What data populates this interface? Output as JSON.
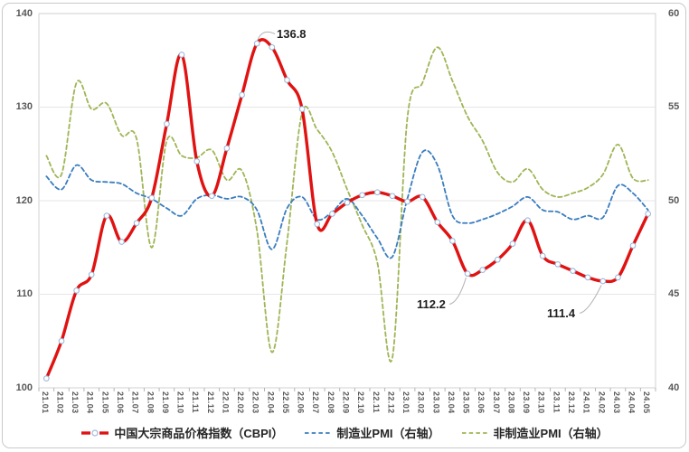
{
  "chart_data": {
    "type": "line",
    "title": "",
    "legend_position": "bottom",
    "grid": true,
    "x_labels": [
      "21.01",
      "21.02",
      "21.03",
      "21.04",
      "21.05",
      "21.06",
      "21.07",
      "21.08",
      "21.09",
      "21.10",
      "21.11",
      "21.12",
      "22.01",
      "22.02",
      "22.03",
      "22.04",
      "22.05",
      "22.06",
      "22.07",
      "22.08",
      "22.09",
      "22.10",
      "22.11",
      "22.12",
      "23.01",
      "23.02",
      "23.03",
      "23.04",
      "23.05",
      "23.06",
      "23.07",
      "23.08",
      "23.09",
      "23.10",
      "23.11",
      "23.12",
      "24.01",
      "24.02",
      "24.03",
      "24.04",
      "24.05"
    ],
    "left_axis": {
      "min": 100,
      "max": 140,
      "ticks": [
        100,
        110,
        120,
        130,
        140
      ]
    },
    "right_axis": {
      "min": 40,
      "max": 60,
      "ticks": [
        40,
        45,
        50,
        55,
        60
      ]
    },
    "series": [
      {
        "name": "中国大宗商品价格指数（CBPI）",
        "axis": "left",
        "style": "solid",
        "markers": true,
        "color": "#e01212",
        "values": [
          101.0,
          105.0,
          110.4,
          112.1,
          118.4,
          115.6,
          117.6,
          120.3,
          128.2,
          135.6,
          124.2,
          120.5,
          125.6,
          131.3,
          136.8,
          136.4,
          132.9,
          129.8,
          117.5,
          118.6,
          119.8,
          120.6,
          120.9,
          120.5,
          119.9,
          120.4,
          117.7,
          115.7,
          112.2,
          112.6,
          113.7,
          115.4,
          117.9,
          114.1,
          113.2,
          112.5,
          111.8,
          111.4,
          111.8,
          115.2,
          118.6
        ]
      },
      {
        "name": "制造业PMI（右轴）",
        "axis": "right",
        "style": "dashed",
        "markers": false,
        "color": "#3a7dbf",
        "values": [
          51.3,
          50.6,
          51.9,
          51.1,
          51.0,
          50.9,
          50.4,
          50.1,
          49.6,
          49.2,
          50.1,
          50.3,
          50.1,
          50.2,
          49.5,
          47.4,
          49.6,
          50.2,
          49.0,
          49.4,
          50.1,
          49.2,
          48.0,
          47.0,
          50.1,
          52.6,
          51.9,
          49.2,
          48.8,
          49.0,
          49.3,
          49.7,
          50.2,
          49.5,
          49.4,
          49.0,
          49.2,
          49.1,
          50.8,
          50.4,
          49.5
        ]
      },
      {
        "name": "非制造业PMI（右轴）",
        "axis": "right",
        "style": "dashed",
        "markers": false,
        "color": "#9fb556",
        "values": [
          52.4,
          51.4,
          56.3,
          54.9,
          55.2,
          53.5,
          53.3,
          47.5,
          53.2,
          52.4,
          52.3,
          52.7,
          51.1,
          51.6,
          48.4,
          41.9,
          47.8,
          54.7,
          53.8,
          52.6,
          50.6,
          48.7,
          46.7,
          41.6,
          54.4,
          56.3,
          58.2,
          56.4,
          54.5,
          53.2,
          51.5,
          51.0,
          51.7,
          50.6,
          50.2,
          50.4,
          50.7,
          51.4,
          53.0,
          51.2,
          51.1
        ]
      }
    ],
    "annotations": [
      {
        "label": "136.8",
        "series": 0,
        "point": 14
      },
      {
        "label": "112.2",
        "series": 0,
        "point": 28
      },
      {
        "label": "111.4",
        "series": 0,
        "point": 37
      }
    ],
    "colors": {
      "grid": "#e6e6e6",
      "border": "#d2d2d2",
      "tick": "#b5b5b5",
      "axis_text": "#595959",
      "text": "#1f1f1f",
      "marker_fill": "#ffffff",
      "marker_border": "#9cb9dc",
      "leader": "#b3b3b3"
    }
  }
}
